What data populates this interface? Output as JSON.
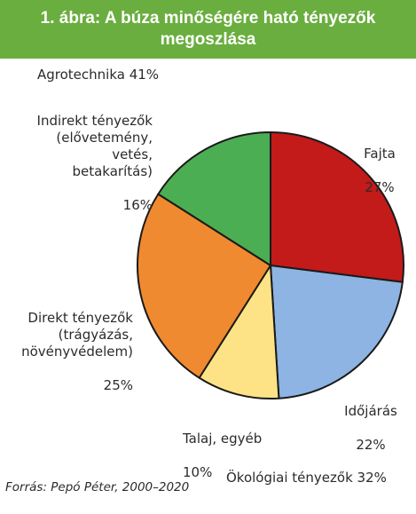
{
  "chart_data": {
    "type": "pie",
    "title": "1. ábra: A búza minőségére ható tényezők megoszlása",
    "start_angle_deg": 0,
    "direction": "clockwise",
    "slices": [
      {
        "label": "Fajta",
        "value_label": "27%",
        "value": 27,
        "color": "#c31a1a"
      },
      {
        "label": "Időjárás",
        "value_label": "22%",
        "value": 22,
        "color": "#8db4e2"
      },
      {
        "label": "Talaj, egyéb",
        "value_label": "10%",
        "value": 10,
        "color": "#fde386"
      },
      {
        "label": "Direkt tényezők\n(trágyázás,\nnövényvédelem)",
        "value_label": "25%",
        "value": 25,
        "color": "#f08a30"
      },
      {
        "label": "Indirekt tényezők\n(elővetemény,\nvetés,\nbetakarítás)",
        "value_label": "16%",
        "value": 16,
        "color": "#4cae52"
      }
    ],
    "group_labels": {
      "agrotechnika": "Agrotechnika 41%",
      "okologiai": "Ökológiai tényezők 32%"
    },
    "source": "Forrás: Pepó Péter, 2000–2020"
  }
}
